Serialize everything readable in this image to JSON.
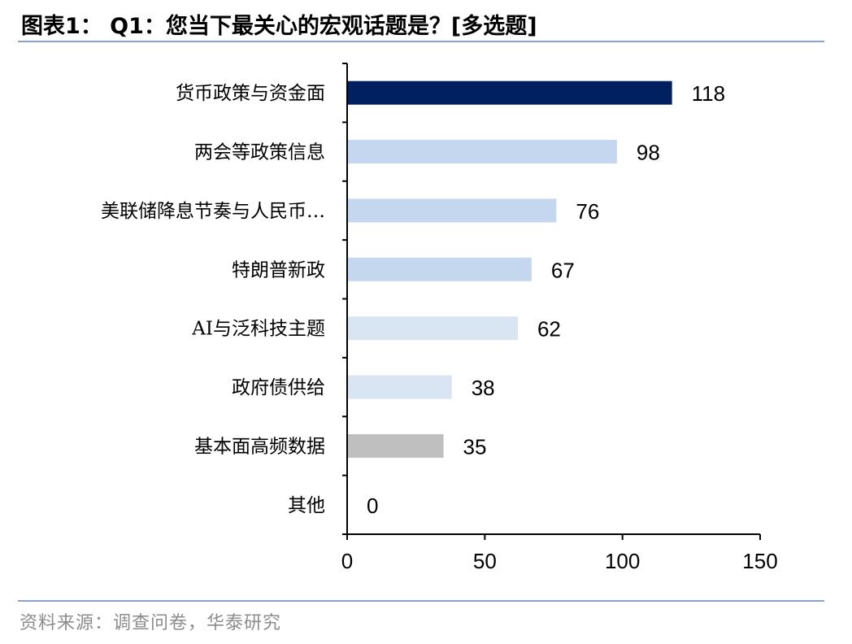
{
  "header": {
    "title": "图表1： Q1：您当下最关心的宏观话题是？[多选题]"
  },
  "footer": {
    "source": "资料来源：调查问卷，华泰研究"
  },
  "chart_data": {
    "type": "bar",
    "orientation": "horizontal",
    "title": "",
    "xlabel": "",
    "ylabel": "",
    "categories": [
      "货币政策与资金面",
      "两会等政策信息",
      "美联储降息节奏与人民币…",
      "特朗普新政",
      "AI与泛科技主题",
      "政府债供给",
      "基本面高频数据",
      "其他"
    ],
    "values": [
      118,
      98,
      76,
      67,
      62,
      38,
      35,
      0
    ],
    "colors": [
      "#002060",
      "#c5d7ef",
      "#c5d7ef",
      "#c5d7ef",
      "#dae5f3",
      "#dae5f3",
      "#bfbfbf",
      "#bfbfbf"
    ],
    "xlim": [
      0,
      150
    ],
    "xticks": [
      0,
      50,
      100,
      150
    ],
    "grid": false,
    "legend": "none"
  }
}
